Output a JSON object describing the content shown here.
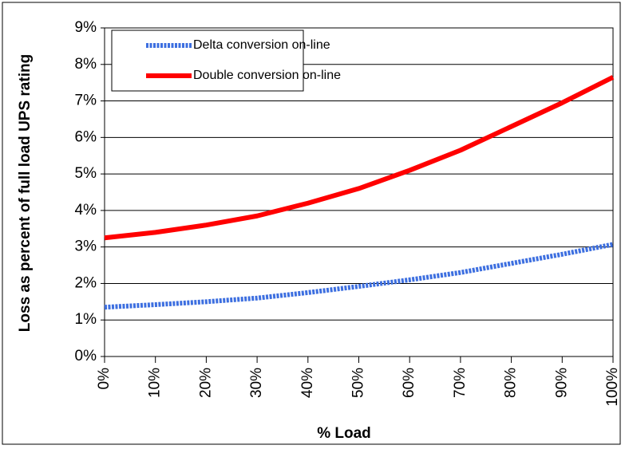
{
  "chart_data": {
    "type": "line",
    "xlabel": "% Load",
    "ylabel": "Loss as percent of full load UPS rating",
    "x": [
      0,
      10,
      20,
      30,
      40,
      50,
      60,
      70,
      80,
      90,
      100
    ],
    "series": [
      {
        "name": "Delta conversion on-line",
        "color": "#3d6fe0",
        "style": "dotted",
        "values": [
          1.35,
          1.42,
          1.5,
          1.6,
          1.75,
          1.92,
          2.1,
          2.3,
          2.55,
          2.8,
          3.07
        ]
      },
      {
        "name": "Double conversion on-line",
        "color": "#ff0000",
        "style": "solid",
        "values": [
          3.25,
          3.4,
          3.6,
          3.85,
          4.2,
          4.6,
          5.1,
          5.65,
          6.3,
          6.95,
          7.65
        ]
      }
    ],
    "xlim": [
      0,
      100
    ],
    "xticks": [
      {
        "value": 0,
        "label": "0%"
      },
      {
        "value": 10,
        "label": "10%"
      },
      {
        "value": 20,
        "label": "20%"
      },
      {
        "value": 30,
        "label": "30%"
      },
      {
        "value": 40,
        "label": "40%"
      },
      {
        "value": 50,
        "label": "50%"
      },
      {
        "value": 60,
        "label": "60%"
      },
      {
        "value": 70,
        "label": "70%"
      },
      {
        "value": 80,
        "label": "80%"
      },
      {
        "value": 90,
        "label": "90%"
      },
      {
        "value": 100,
        "label": "100%"
      }
    ],
    "ylim": [
      0,
      9
    ],
    "yticks": [
      {
        "value": 0,
        "label": "0%"
      },
      {
        "value": 1,
        "label": "1%"
      },
      {
        "value": 2,
        "label": "2%"
      },
      {
        "value": 3,
        "label": "3%"
      },
      {
        "value": 4,
        "label": "4%"
      },
      {
        "value": 5,
        "label": "5%"
      },
      {
        "value": 6,
        "label": "6%"
      },
      {
        "value": 7,
        "label": "7%"
      },
      {
        "value": 8,
        "label": "8%"
      },
      {
        "value": 9,
        "label": "9%"
      }
    ],
    "grid": true,
    "legend": "upper left"
  }
}
